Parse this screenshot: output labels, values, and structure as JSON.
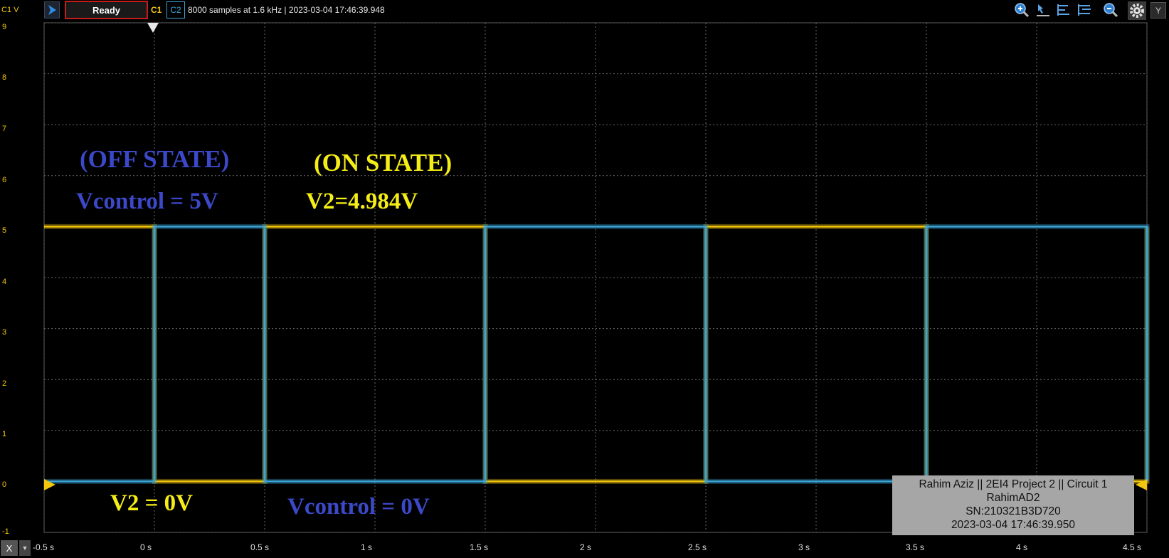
{
  "toolbar": {
    "run_state": "Ready",
    "channel1": "C1",
    "channel2": "C2",
    "status": "8000 samples at 1.6 kHz | 2023-03-04 17:46:39.948",
    "y_button": "Y",
    "icons": [
      "play-icon",
      "zoom-in-icon",
      "cursor-icon",
      "align-left-icon",
      "align-stack-icon",
      "zoom-fit-icon",
      "gear-icon"
    ]
  },
  "axis": {
    "y_unit_label": "C1 V",
    "y_ticks": [
      "9",
      "8",
      "7",
      "6",
      "5",
      "4",
      "3",
      "2",
      "1",
      "0",
      "-1"
    ],
    "x_ticks": [
      "-0.5 s",
      "0 s",
      "0.5 s",
      "1 s",
      "1.5 s",
      "2 s",
      "2.5 s",
      "3 s",
      "3.5 s",
      "4 s",
      "4.5 s"
    ],
    "x_button": "X"
  },
  "annotations": {
    "off_state": "(OFF STATE)",
    "vcontrol_5v": "Vcontrol = 5V",
    "on_state": "(ON STATE)",
    "v2_high": "V2=4.984V",
    "v2_zero": "V2 = 0V",
    "vcontrol_0v": "Vcontrol = 0V"
  },
  "info_box": {
    "line1": "Rahim Aziz || 2EI4 Project 2 || Circuit 1",
    "line2": "RahimAD2",
    "line3": "SN:210321B3D720",
    "line4": "2023-03-04 17:46:39.950"
  },
  "colors": {
    "c1": "#f2c70e",
    "c2": "#3aa6d8",
    "ready_border": "#c51b1b",
    "annotation_blue": "#3b49c8",
    "annotation_yellow": "#f5ed16"
  },
  "chart_data": {
    "type": "line",
    "x_unit": "s",
    "y_unit": "V",
    "xlim": [
      -0.5,
      4.5
    ],
    "ylim": [
      -1,
      9
    ],
    "grid": true,
    "series": [
      {
        "name": "C1",
        "color": "#f2c70e",
        "x": [
          -0.5,
          0,
          0,
          0.5,
          0.5,
          1.5,
          1.5,
          2.5,
          2.5,
          3.5,
          3.5,
          4.5,
          4.5
        ],
        "y": [
          5,
          5,
          0,
          0,
          5,
          5,
          0,
          0,
          5,
          5,
          0,
          0,
          5
        ]
      },
      {
        "name": "C2",
        "color": "#3aa6d8",
        "x": [
          -0.5,
          0,
          0,
          0.5,
          0.5,
          1.5,
          1.5,
          2.5,
          2.5,
          3.5,
          3.5,
          4.5,
          4.5
        ],
        "y": [
          0,
          0,
          5,
          5,
          0,
          0,
          5,
          5,
          0,
          0,
          5,
          5,
          0
        ]
      }
    ]
  }
}
